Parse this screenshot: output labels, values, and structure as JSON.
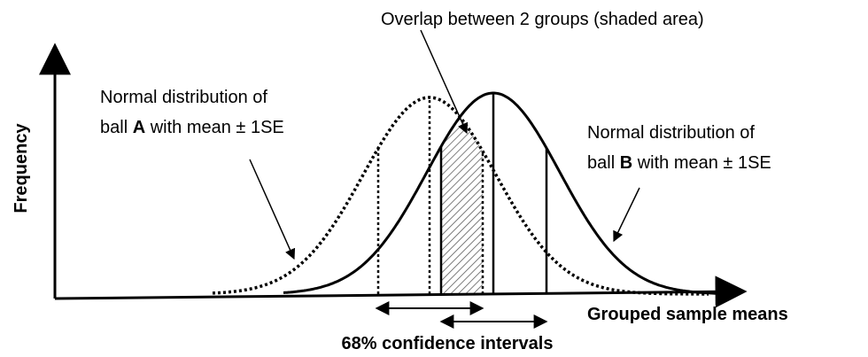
{
  "annotations": {
    "overlap": "Overlap between 2 groups (shaded area)",
    "ball_a": {
      "line1": "Normal distribution of",
      "line2": [
        "ball ",
        "A",
        " with mean ± 1SE"
      ]
    },
    "ball_b": {
      "line1": "Normal distribution of",
      "line2": [
        "ball ",
        "B",
        " with mean ± 1SE"
      ]
    },
    "confidence": "68% confidence intervals"
  },
  "axes": {
    "y_label": "Frequency",
    "x_label": "Grouped sample means"
  }
}
